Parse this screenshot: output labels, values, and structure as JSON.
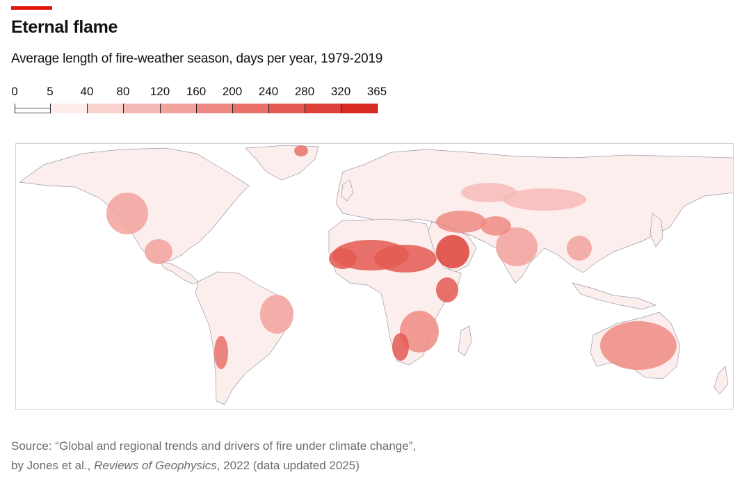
{
  "header": {
    "title": "Eternal flame",
    "subtitle": "Average length of fire-weather season, days per year, 1979-2019"
  },
  "legend": {
    "ticks": [
      "0",
      "5",
      "40",
      "80",
      "120",
      "160",
      "200",
      "240",
      "280",
      "320",
      "365"
    ],
    "colors": [
      "#ffffff",
      "#fdecea",
      "#f9d2cf",
      "#f6bab6",
      "#f2a29c",
      "#ee8a83",
      "#e9716a",
      "#e35a52",
      "#dd423a",
      "#d62a22"
    ]
  },
  "map": {
    "land_base_color": "#fdeeee",
    "border_color": "#9a9aa5",
    "ocean_color": "#ffffff",
    "regions": [
      {
        "name": "Sahara",
        "level": 7
      },
      {
        "name": "Arabian Peninsula",
        "level": 8
      },
      {
        "name": "Horn of Africa",
        "level": 7
      },
      {
        "name": "Southern Africa",
        "level": 5
      },
      {
        "name": "Namibia coast",
        "level": 7
      },
      {
        "name": "Australia",
        "level": 5
      },
      {
        "name": "South Asia",
        "level": 4
      },
      {
        "name": "Middle East",
        "level": 5
      },
      {
        "name": "Mexico and southwest US",
        "level": 4
      },
      {
        "name": "Eastern Brazil",
        "level": 4
      },
      {
        "name": "Atacama",
        "level": 6
      },
      {
        "name": "Central Asia",
        "level": 3
      },
      {
        "name": "Greenland east coast",
        "level": 6
      }
    ]
  },
  "source": {
    "line1": "Source: “Global and regional trends and drivers of fire under climate change”,",
    "line2_prefix": "by Jones et al., ",
    "journal": "Reviews of Geophysics",
    "line2_suffix": ", 2022 (data updated 2025)"
  }
}
